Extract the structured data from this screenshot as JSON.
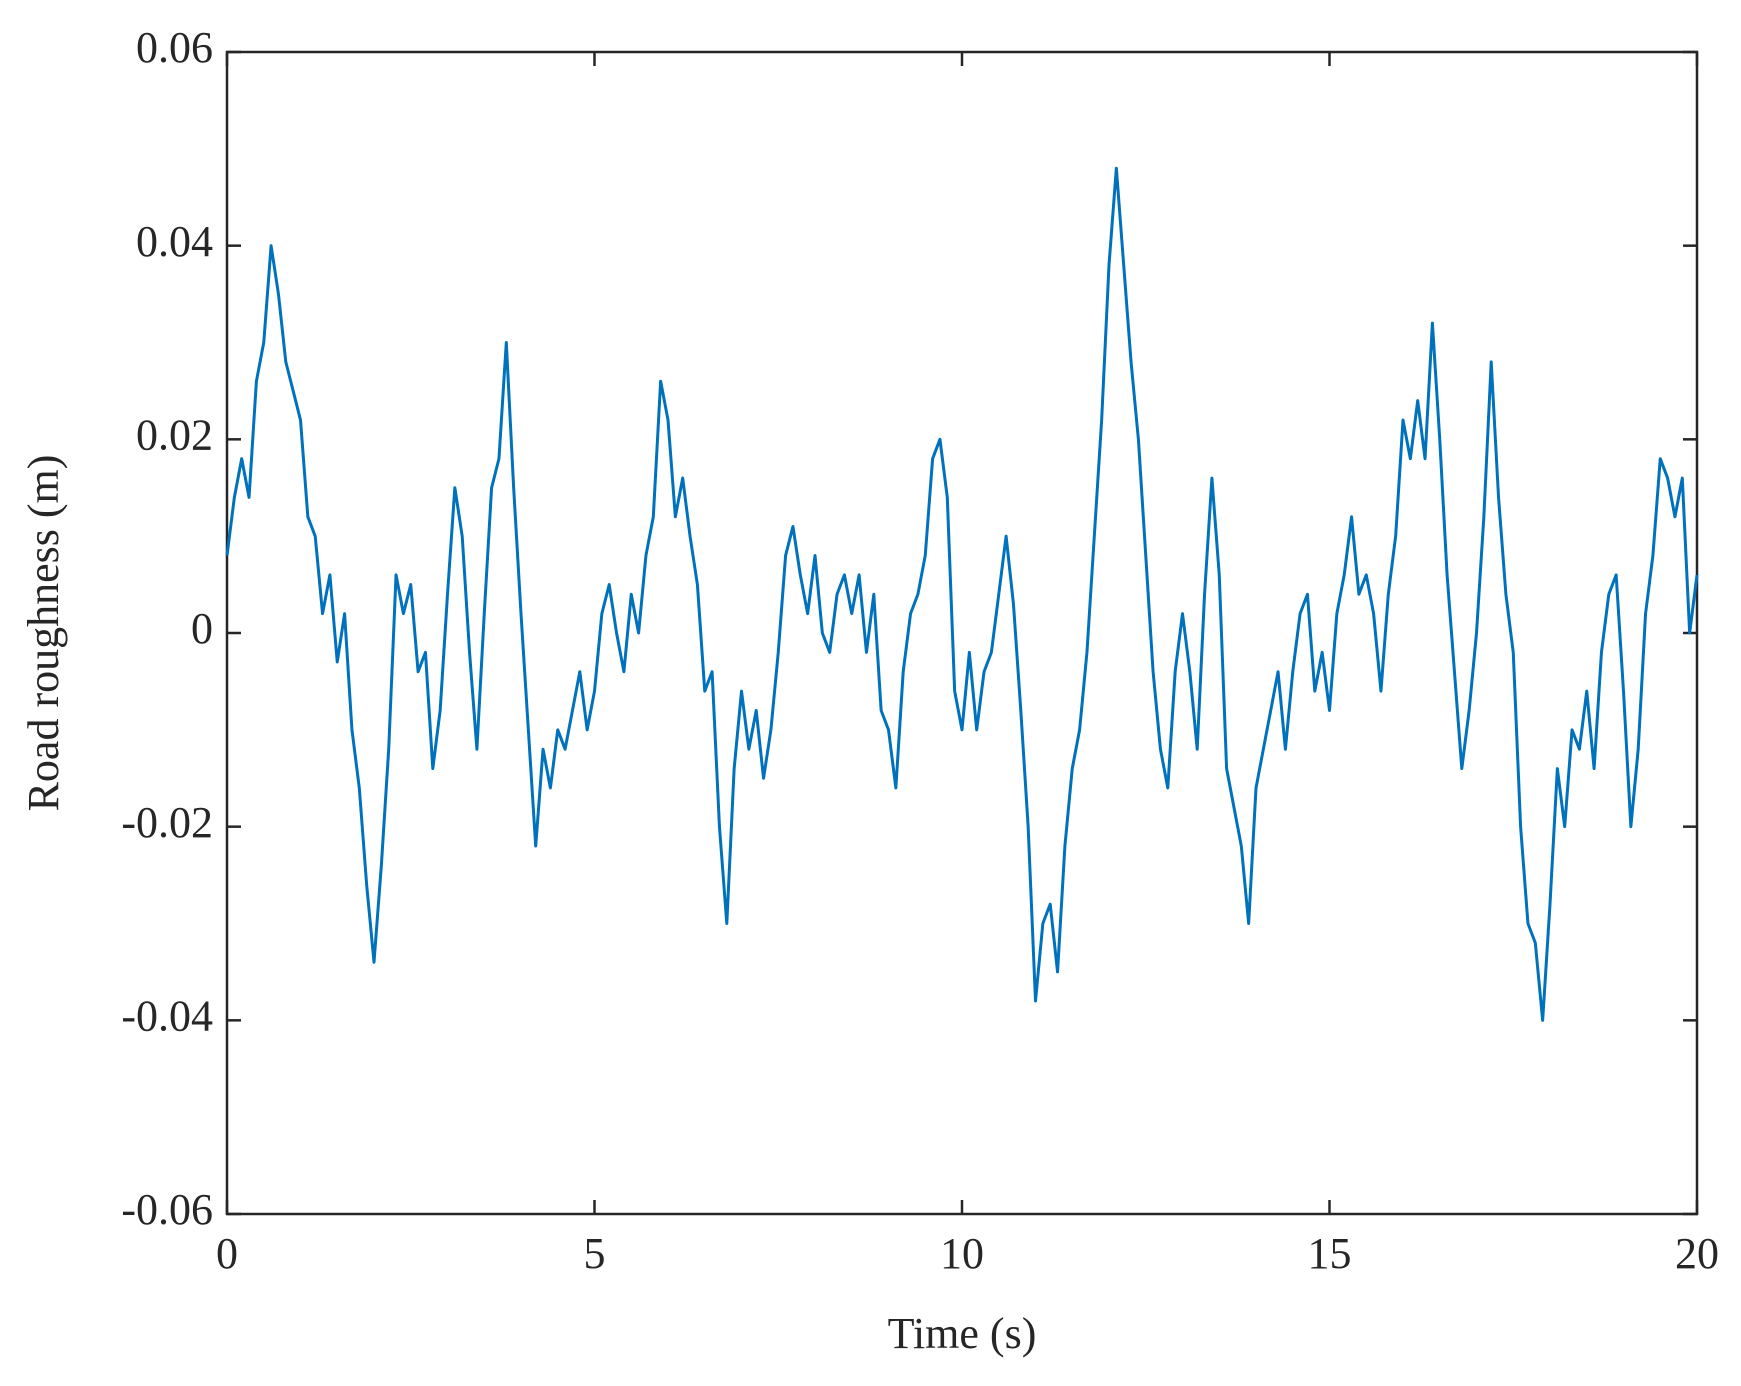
{
  "chart_data": {
    "type": "line",
    "xlabel": "Time (s)",
    "ylabel": "Road roughness (m)",
    "color": "#0072bd",
    "xlim": [
      0,
      20
    ],
    "ylim": [
      -0.06,
      0.06
    ],
    "xticks": [
      0,
      5,
      10,
      15,
      20
    ],
    "yticks": [
      -0.06,
      -0.04,
      -0.02,
      0,
      0.02,
      0.04,
      0.06
    ],
    "grid": false,
    "x": [
      0,
      0.1,
      0.2,
      0.3,
      0.4,
      0.5,
      0.6,
      0.7,
      0.8,
      0.9,
      1,
      1.1,
      1.2,
      1.3,
      1.4,
      1.5,
      1.6,
      1.7,
      1.8,
      1.9,
      2,
      2.1,
      2.2,
      2.3,
      2.4,
      2.5,
      2.6,
      2.7,
      2.8,
      2.9,
      3,
      3.1,
      3.2,
      3.3,
      3.4,
      3.5,
      3.6,
      3.7,
      3.8,
      3.9,
      4,
      4.1,
      4.2,
      4.3,
      4.4,
      4.5,
      4.6,
      4.7,
      4.8,
      4.9,
      5,
      5.1,
      5.2,
      5.3,
      5.4,
      5.5,
      5.6,
      5.7,
      5.8,
      5.9,
      6,
      6.1,
      6.2,
      6.3,
      6.4,
      6.5,
      6.6,
      6.7,
      6.8,
      6.9,
      7,
      7.1,
      7.2,
      7.3,
      7.4,
      7.5,
      7.6,
      7.7,
      7.8,
      7.9,
      8,
      8.1,
      8.2,
      8.3,
      8.4,
      8.5,
      8.6,
      8.7,
      8.8,
      8.9,
      9,
      9.1,
      9.2,
      9.3,
      9.4,
      9.5,
      9.6,
      9.7,
      9.8,
      9.9,
      10,
      10.1,
      10.2,
      10.3,
      10.4,
      10.5,
      10.6,
      10.7,
      10.8,
      10.9,
      11,
      11.1,
      11.2,
      11.3,
      11.4,
      11.5,
      11.6,
      11.7,
      11.8,
      11.9,
      12,
      12.1,
      12.2,
      12.3,
      12.4,
      12.5,
      12.6,
      12.7,
      12.8,
      12.9,
      13,
      13.1,
      13.2,
      13.3,
      13.4,
      13.5,
      13.6,
      13.7,
      13.8,
      13.9,
      14,
      14.1,
      14.2,
      14.3,
      14.4,
      14.5,
      14.6,
      14.7,
      14.8,
      14.9,
      15,
      15.1,
      15.2,
      15.3,
      15.4,
      15.5,
      15.6,
      15.7,
      15.8,
      15.9,
      16,
      16.1,
      16.2,
      16.3,
      16.4,
      16.5,
      16.6,
      16.7,
      16.8,
      16.9,
      17,
      17.1,
      17.2,
      17.3,
      17.4,
      17.5,
      17.6,
      17.7,
      17.8,
      17.9,
      18,
      18.1,
      18.2,
      18.3,
      18.4,
      18.5,
      18.6,
      18.7,
      18.8,
      18.9,
      19,
      19.1,
      19.2,
      19.3,
      19.4,
      19.5,
      19.6,
      19.7,
      19.8,
      19.9,
      20
    ],
    "values": [
      0.008,
      0.014,
      0.018,
      0.014,
      0.026,
      0.03,
      0.04,
      0.035,
      0.028,
      0.025,
      0.022,
      0.012,
      0.01,
      0.002,
      0.006,
      -0.003,
      0.002,
      -0.01,
      -0.016,
      -0.026,
      -0.034,
      -0.024,
      -0.012,
      0.006,
      0.002,
      0.005,
      -0.004,
      -0.002,
      -0.014,
      -0.008,
      0.004,
      0.015,
      0.01,
      -0.002,
      -0.012,
      0.002,
      0.015,
      0.018,
      0.03,
      0.015,
      0.002,
      -0.01,
      -0.022,
      -0.012,
      -0.016,
      -0.01,
      -0.012,
      -0.008,
      -0.004,
      -0.01,
      -0.006,
      0.002,
      0.005,
      0,
      -0.004,
      0.004,
      0,
      0.008,
      0.012,
      0.026,
      0.022,
      0.012,
      0.016,
      0.01,
      0.005,
      -0.006,
      -0.004,
      -0.02,
      -0.03,
      -0.014,
      -0.006,
      -0.012,
      -0.008,
      -0.015,
      -0.01,
      -0.002,
      0.008,
      0.011,
      0.006,
      0.002,
      0.008,
      0,
      -0.002,
      0.004,
      0.006,
      0.002,
      0.006,
      -0.002,
      0.004,
      -0.008,
      -0.01,
      -0.016,
      -0.004,
      0.002,
      0.004,
      0.008,
      0.018,
      0.02,
      0.014,
      -0.006,
      -0.01,
      -0.002,
      -0.01,
      -0.004,
      -0.002,
      0.004,
      0.01,
      0.003,
      -0.008,
      -0.02,
      -0.038,
      -0.03,
      -0.028,
      -0.035,
      -0.022,
      -0.014,
      -0.01,
      -0.002,
      0.01,
      0.022,
      0.038,
      0.048,
      0.038,
      0.028,
      0.02,
      0.008,
      -0.004,
      -0.012,
      -0.016,
      -0.004,
      0.002,
      -0.004,
      -0.012,
      0.004,
      0.016,
      0.006,
      -0.014,
      -0.018,
      -0.022,
      -0.03,
      -0.016,
      -0.012,
      -0.008,
      -0.004,
      -0.012,
      -0.004,
      0.002,
      0.004,
      -0.006,
      -0.002,
      -0.008,
      0.002,
      0.006,
      0.012,
      0.004,
      0.006,
      0.002,
      -0.006,
      0.004,
      0.01,
      0.022,
      0.018,
      0.024,
      0.018,
      0.032,
      0.02,
      0.006,
      -0.004,
      -0.014,
      -0.008,
      0,
      0.012,
      0.028,
      0.014,
      0.004,
      -0.002,
      -0.02,
      -0.03,
      -0.032,
      -0.04,
      -0.028,
      -0.014,
      -0.02,
      -0.01,
      -0.012,
      -0.006,
      -0.014,
      -0.002,
      0.004,
      0.006,
      -0.006,
      -0.02,
      -0.012,
      0.002,
      0.008,
      0.018,
      0.016,
      0.012,
      0.016,
      0,
      0.006
    ]
  }
}
